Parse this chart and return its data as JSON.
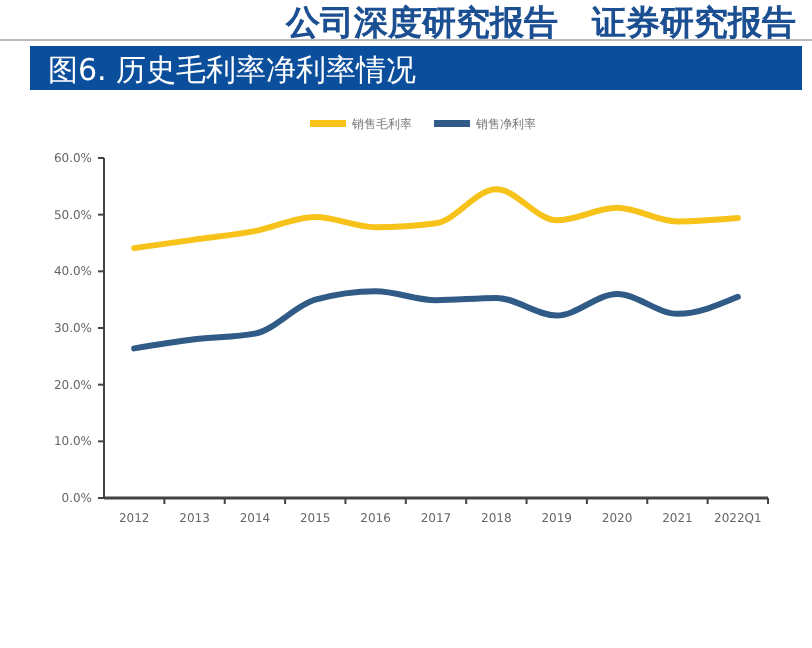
{
  "chart_data": {
    "type": "line",
    "title": "图6. 历史毛利率净利率情况",
    "annotations": [
      "公司深度研究报告　证券研究报告"
    ],
    "categories": [
      "2012",
      "2013",
      "2014",
      "2015",
      "2016",
      "2017",
      "2018",
      "2019",
      "2020",
      "2021",
      "2022Q1"
    ],
    "series": [
      {
        "name": "销售毛利率",
        "color": "#f7c31a",
        "values": [
          44.1,
          45.6,
          47.1,
          49.6,
          47.8,
          48.5,
          54.5,
          49.0,
          51.2,
          48.8,
          49.4
        ]
      },
      {
        "name": "销售净利率",
        "color": "#2f5b86",
        "values": [
          26.4,
          28.0,
          29.0,
          35.0,
          36.5,
          34.9,
          35.3,
          32.2,
          36.0,
          32.5,
          35.5
        ]
      }
    ],
    "ylim": [
      0,
      60
    ],
    "yticks": [
      {
        "value": 0,
        "label": "0.0%"
      },
      {
        "value": 10,
        "label": "10.0%"
      },
      {
        "value": 20,
        "label": "20.0%"
      },
      {
        "value": 30,
        "label": "30.0%"
      },
      {
        "value": 40,
        "label": "40.0%"
      },
      {
        "value": 50,
        "label": "50.0%"
      },
      {
        "value": 60,
        "label": "60.0%"
      }
    ],
    "legend": "top",
    "grid": false,
    "marker": "none",
    "line_style": "solid"
  }
}
